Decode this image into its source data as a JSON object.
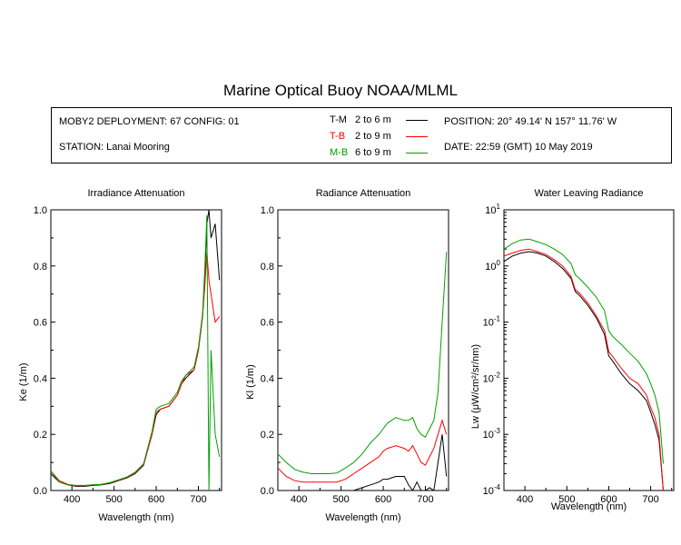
{
  "header": {
    "title": "Marine Optical Buoy NOAA/MLML",
    "deployment": "MOBY2 DEPLOYMENT: 67 CONFIG: 01",
    "station": "STATION: Lanai Mooring",
    "position": "POSITION: 20° 49.14' N   157° 11.76' W",
    "date": "DATE: 22:59 (GMT) 10 May 2019"
  },
  "legend": [
    {
      "code": "T-M",
      "depths": "2 to 6  m",
      "color": "#000000"
    },
    {
      "code": "T-B",
      "depths": "2 to 9  m",
      "color": "#ff0000"
    },
    {
      "code": "M-B",
      "depths": "6 to 9  m",
      "color": "#00a000"
    }
  ],
  "chart_data": [
    {
      "type": "line",
      "title": "Irradiance Attenuation",
      "xlabel": "Wavelength (nm)",
      "ylabel": "Ke  (1/m)",
      "xlim": [
        350,
        755
      ],
      "ylim": [
        0,
        1.0
      ],
      "xticks": [
        "400",
        "500",
        "600",
        "700"
      ],
      "yticks": [
        "0.0",
        "0.2",
        "0.4",
        "0.6",
        "0.8",
        "1.0"
      ],
      "x": [
        350,
        370,
        390,
        410,
        430,
        450,
        470,
        490,
        510,
        530,
        550,
        570,
        590,
        600,
        610,
        630,
        650,
        660,
        670,
        690,
        700,
        710,
        715,
        720,
        725,
        730,
        740,
        750
      ],
      "series": [
        {
          "name": "T-M",
          "color": "#000000",
          "values": [
            0.06,
            0.03,
            0.02,
            0.015,
            0.015,
            0.018,
            0.02,
            0.025,
            0.035,
            0.045,
            0.06,
            0.09,
            0.2,
            0.27,
            0.29,
            0.3,
            0.34,
            0.38,
            0.4,
            0.43,
            0.5,
            0.62,
            0.75,
            0.95,
            1.0,
            0.9,
            0.95,
            0.75
          ]
        },
        {
          "name": "T-B",
          "color": "#ff0000",
          "values": [
            0.07,
            0.035,
            0.022,
            0.017,
            0.017,
            0.02,
            0.022,
            0.027,
            0.037,
            0.047,
            0.062,
            0.092,
            0.2,
            0.28,
            0.29,
            0.3,
            0.34,
            0.38,
            0.41,
            0.43,
            0.5,
            0.62,
            0.72,
            0.85,
            0.75,
            0.7,
            0.6,
            0.62
          ]
        },
        {
          "name": "M-B",
          "color": "#00a000",
          "values": [
            0.07,
            0.03,
            0.02,
            0.018,
            0.018,
            0.02,
            0.022,
            0.028,
            0.038,
            0.048,
            0.065,
            0.095,
            0.21,
            0.29,
            0.3,
            0.31,
            0.35,
            0.39,
            0.41,
            0.44,
            0.51,
            0.63,
            0.78,
            0.98,
            0.0,
            0.5,
            0.2,
            0.12
          ]
        }
      ]
    },
    {
      "type": "line",
      "title": "Radiance Attenuation",
      "xlabel": "Wavelength (nm)",
      "ylabel": "Kl  (1/m)",
      "xlim": [
        350,
        755
      ],
      "ylim": [
        0,
        1.0
      ],
      "xticks": [
        "400",
        "500",
        "600",
        "700"
      ],
      "yticks": [
        "0.0",
        "0.2",
        "0.4",
        "0.6",
        "0.8",
        "1.0"
      ],
      "x": [
        350,
        370,
        390,
        410,
        430,
        450,
        470,
        490,
        510,
        530,
        550,
        570,
        590,
        600,
        610,
        630,
        650,
        660,
        670,
        680,
        690,
        700,
        710,
        720,
        730,
        740,
        750
      ],
      "series": [
        {
          "name": "T-M",
          "color": "#000000",
          "values": [
            0.0,
            0.0,
            0.0,
            0.0,
            0.0,
            0.0,
            0.0,
            0.0,
            0.0,
            0.0,
            0.01,
            0.02,
            0.03,
            0.04,
            0.04,
            0.05,
            0.05,
            0.02,
            0.0,
            0.03,
            0.0,
            0.0,
            0.01,
            0.0,
            0.1,
            0.2,
            0.05
          ]
        },
        {
          "name": "T-B",
          "color": "#ff0000",
          "values": [
            0.08,
            0.05,
            0.035,
            0.03,
            0.03,
            0.03,
            0.03,
            0.03,
            0.04,
            0.06,
            0.08,
            0.1,
            0.12,
            0.14,
            0.15,
            0.16,
            0.15,
            0.14,
            0.16,
            0.13,
            0.1,
            0.09,
            0.12,
            0.15,
            0.2,
            0.25,
            0.2
          ]
        },
        {
          "name": "M-B",
          "color": "#00a000",
          "values": [
            0.13,
            0.1,
            0.075,
            0.065,
            0.06,
            0.06,
            0.06,
            0.062,
            0.08,
            0.1,
            0.13,
            0.17,
            0.2,
            0.22,
            0.24,
            0.26,
            0.25,
            0.25,
            0.26,
            0.22,
            0.2,
            0.19,
            0.22,
            0.25,
            0.35,
            0.6,
            0.85
          ]
        }
      ]
    },
    {
      "type": "line",
      "title": "Water Leaving Radiance",
      "xlabel": "Wavelength (nm)",
      "ylabel": "Lw  (μW/cm²/sr/nm)",
      "xlim": [
        350,
        755
      ],
      "ylim": [
        0.0001,
        10
      ],
      "yscale": "log",
      "xticks": [
        "400",
        "500",
        "600",
        "700"
      ],
      "yticks": [
        "10-4",
        "10-3",
        "10-2",
        "10-1",
        "100",
        "101"
      ],
      "x": [
        350,
        370,
        390,
        410,
        430,
        450,
        470,
        490,
        510,
        520,
        530,
        550,
        570,
        590,
        600,
        610,
        630,
        650,
        670,
        690,
        700,
        710,
        720,
        730
      ],
      "series": [
        {
          "name": "T-M",
          "color": "#000000",
          "values": [
            1.2,
            1.5,
            1.7,
            1.8,
            1.7,
            1.5,
            1.2,
            0.9,
            0.6,
            0.35,
            0.3,
            0.2,
            0.12,
            0.06,
            0.025,
            0.02,
            0.012,
            0.008,
            0.006,
            0.004,
            0.0025,
            0.0015,
            0.0008,
            0.0001
          ]
        },
        {
          "name": "T-B",
          "color": "#ff0000",
          "values": [
            1.5,
            1.7,
            1.9,
            2.0,
            1.8,
            1.6,
            1.3,
            1.0,
            0.65,
            0.38,
            0.33,
            0.22,
            0.13,
            0.07,
            0.03,
            0.024,
            0.015,
            0.01,
            0.008,
            0.005,
            0.003,
            0.002,
            0.001,
            0.0001
          ]
        },
        {
          "name": "M-B",
          "color": "#00a000",
          "values": [
            2.0,
            2.5,
            2.9,
            3.0,
            2.7,
            2.4,
            2.0,
            1.6,
            1.1,
            0.7,
            0.6,
            0.42,
            0.28,
            0.16,
            0.07,
            0.055,
            0.04,
            0.028,
            0.02,
            0.012,
            0.008,
            0.005,
            0.0025,
            0.0003
          ]
        }
      ]
    }
  ]
}
